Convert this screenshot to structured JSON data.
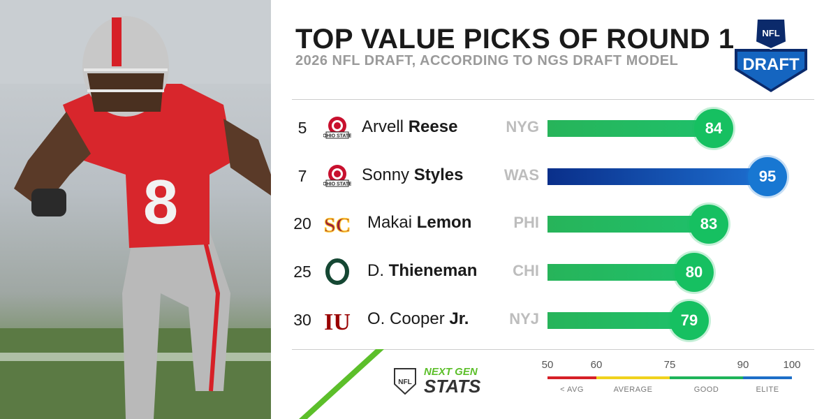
{
  "title": "TOP VALUE PICKS OF ROUND 1",
  "subtitle": "2026 NFL DRAFT, ACCORDING TO NGS DRAFT MODEL",
  "logo_text": "DRAFT",
  "logo_shield_text": "NFL",
  "brand": {
    "line1": "NEXT GEN",
    "line2": "STATS",
    "shield": "NFL"
  },
  "colors": {
    "good": "#1fb45a",
    "elite": "#0a5fb4",
    "red": "#d62027",
    "yellow": "#f0d21e",
    "green": "#1fb45a",
    "blue": "#1e6fc8"
  },
  "chart_data": {
    "type": "bar",
    "title": "TOP VALUE PICKS OF ROUND 1",
    "subtitle": "2026 NFL DRAFT, ACCORDING TO NGS DRAFT MODEL",
    "xlim": [
      50,
      100
    ],
    "rows": [
      {
        "pick": "5",
        "school": "OHIO STATE",
        "school_icon": "ohio-state-logo",
        "first": "Arvell",
        "last": "Reese",
        "team": "NYG",
        "score": 84,
        "tier": "good"
      },
      {
        "pick": "7",
        "school": "OHIO STATE",
        "school_icon": "ohio-state-logo",
        "first": "Sonny",
        "last": "Styles",
        "team": "WAS",
        "score": 95,
        "tier": "elite"
      },
      {
        "pick": "20",
        "school": "SC",
        "school_icon": "usc-logo",
        "first": "Makai",
        "last": "Lemon",
        "team": "PHI",
        "score": 83,
        "tier": "good"
      },
      {
        "pick": "25",
        "school": "O",
        "school_icon": "oregon-logo",
        "first": "D.",
        "last": "Thieneman",
        "team": "CHI",
        "score": 80,
        "tier": "good"
      },
      {
        "pick": "30",
        "school": "IU",
        "school_icon": "indiana-logo",
        "first": "O. Cooper",
        "last": "Jr.",
        "team": "NYJ",
        "score": 79,
        "tier": "good"
      }
    ],
    "scale": {
      "ticks": [
        "50",
        "60",
        "75",
        "90",
        "100"
      ],
      "categories": [
        "< AVG",
        "AVERAGE",
        "GOOD",
        "ELITE"
      ]
    }
  }
}
